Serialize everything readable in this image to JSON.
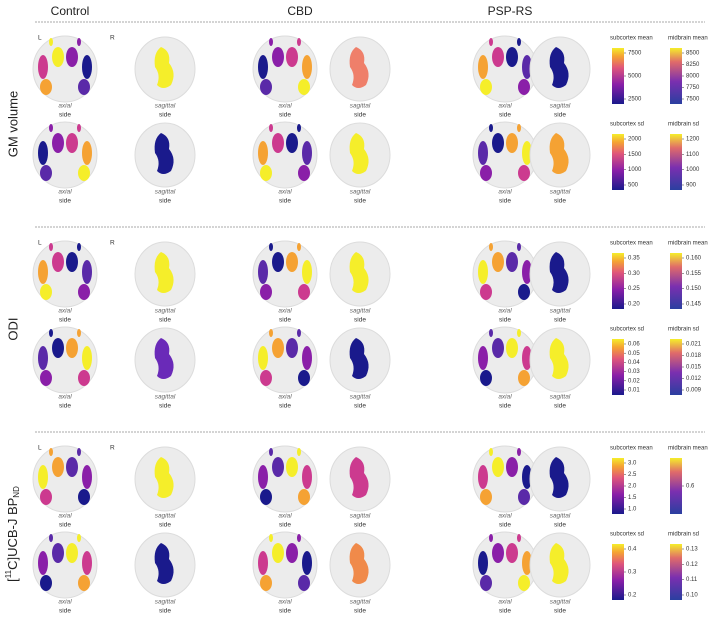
{
  "columns": [
    "Control",
    "CBD",
    "PSP-RS"
  ],
  "hemispheres": [
    "L",
    "R"
  ],
  "views": {
    "axial": "axial",
    "sagittal": "sagittal",
    "side": "side"
  },
  "groups": [
    {
      "label": {
        "text": "GM volume"
      },
      "rows": [
        {
          "sagittal_colors": [
            "#f5ee2a",
            "#ef7f6a",
            "#1a1a8c"
          ],
          "legends": [
            {
              "title": "subcortex mean",
              "ticks": [
                "7500",
                "5000",
                "2500"
              ]
            },
            {
              "title": "midbrain mean",
              "ticks": [
                "8500",
                "8250",
                "8000",
                "7750",
                "7500"
              ]
            }
          ]
        },
        {
          "sagittal_colors": [
            "#1a1a8c",
            "#f5ee2a",
            "#f5a233"
          ],
          "legends": [
            {
              "title": "subcortex sd",
              "ticks": [
                "2000",
                "1500",
                "1000",
                "500"
              ]
            },
            {
              "title": "midbrain sd",
              "ticks": [
                "1200",
                "1100",
                "1000",
                "900"
              ]
            }
          ]
        }
      ]
    },
    {
      "label": {
        "text": "ODI"
      },
      "rows": [
        {
          "sagittal_colors": [
            "#f5ee2a",
            "#f5ee2a",
            "#1a1a8c"
          ],
          "legends": [
            {
              "title": "subcortex mean",
              "ticks": [
                "0.35",
                "0.30",
                "0.25",
                "0.20"
              ]
            },
            {
              "title": "midbrain mean",
              "ticks": [
                "0.160",
                "0.155",
                "0.150",
                "0.145"
              ]
            }
          ]
        },
        {
          "sagittal_colors": [
            "#6a2ab8",
            "#1a1a8c",
            "#f5ee2a"
          ],
          "legends": [
            {
              "title": "subcortex sd",
              "ticks": [
                "0.06",
                "0.05",
                "0.04",
                "0.03",
                "0.02",
                "0.01"
              ]
            },
            {
              "title": "midbrain sd",
              "ticks": [
                "0.021",
                "0.018",
                "0.015",
                "0.012",
                "0.009"
              ]
            }
          ]
        }
      ]
    },
    {
      "label": {
        "pre": "[",
        "sup": "11",
        "mid": "C]UCB-J BP",
        "sub": "ND"
      },
      "rows": [
        {
          "sagittal_colors": [
            "#f5ee2a",
            "#cc3a8f",
            "#1a1a8c"
          ],
          "legends": [
            {
              "title": "subcortex mean",
              "ticks": [
                "3.0",
                "2.5",
                "2.0",
                "1.5",
                "1.0"
              ]
            },
            {
              "title": "midbrain mean",
              "ticks": [
                "0.6"
              ]
            }
          ]
        },
        {
          "sagittal_colors": [
            "#1a1a8c",
            "#f08a4a",
            "#f5ee2a"
          ],
          "legends": [
            {
              "title": "subcortex sd",
              "ticks": [
                "0.4",
                "0.3",
                "0.2"
              ]
            },
            {
              "title": "midbrain sd",
              "ticks": [
                "0.13",
                "0.12",
                "0.11",
                "0.10"
              ]
            }
          ]
        }
      ]
    }
  ]
}
